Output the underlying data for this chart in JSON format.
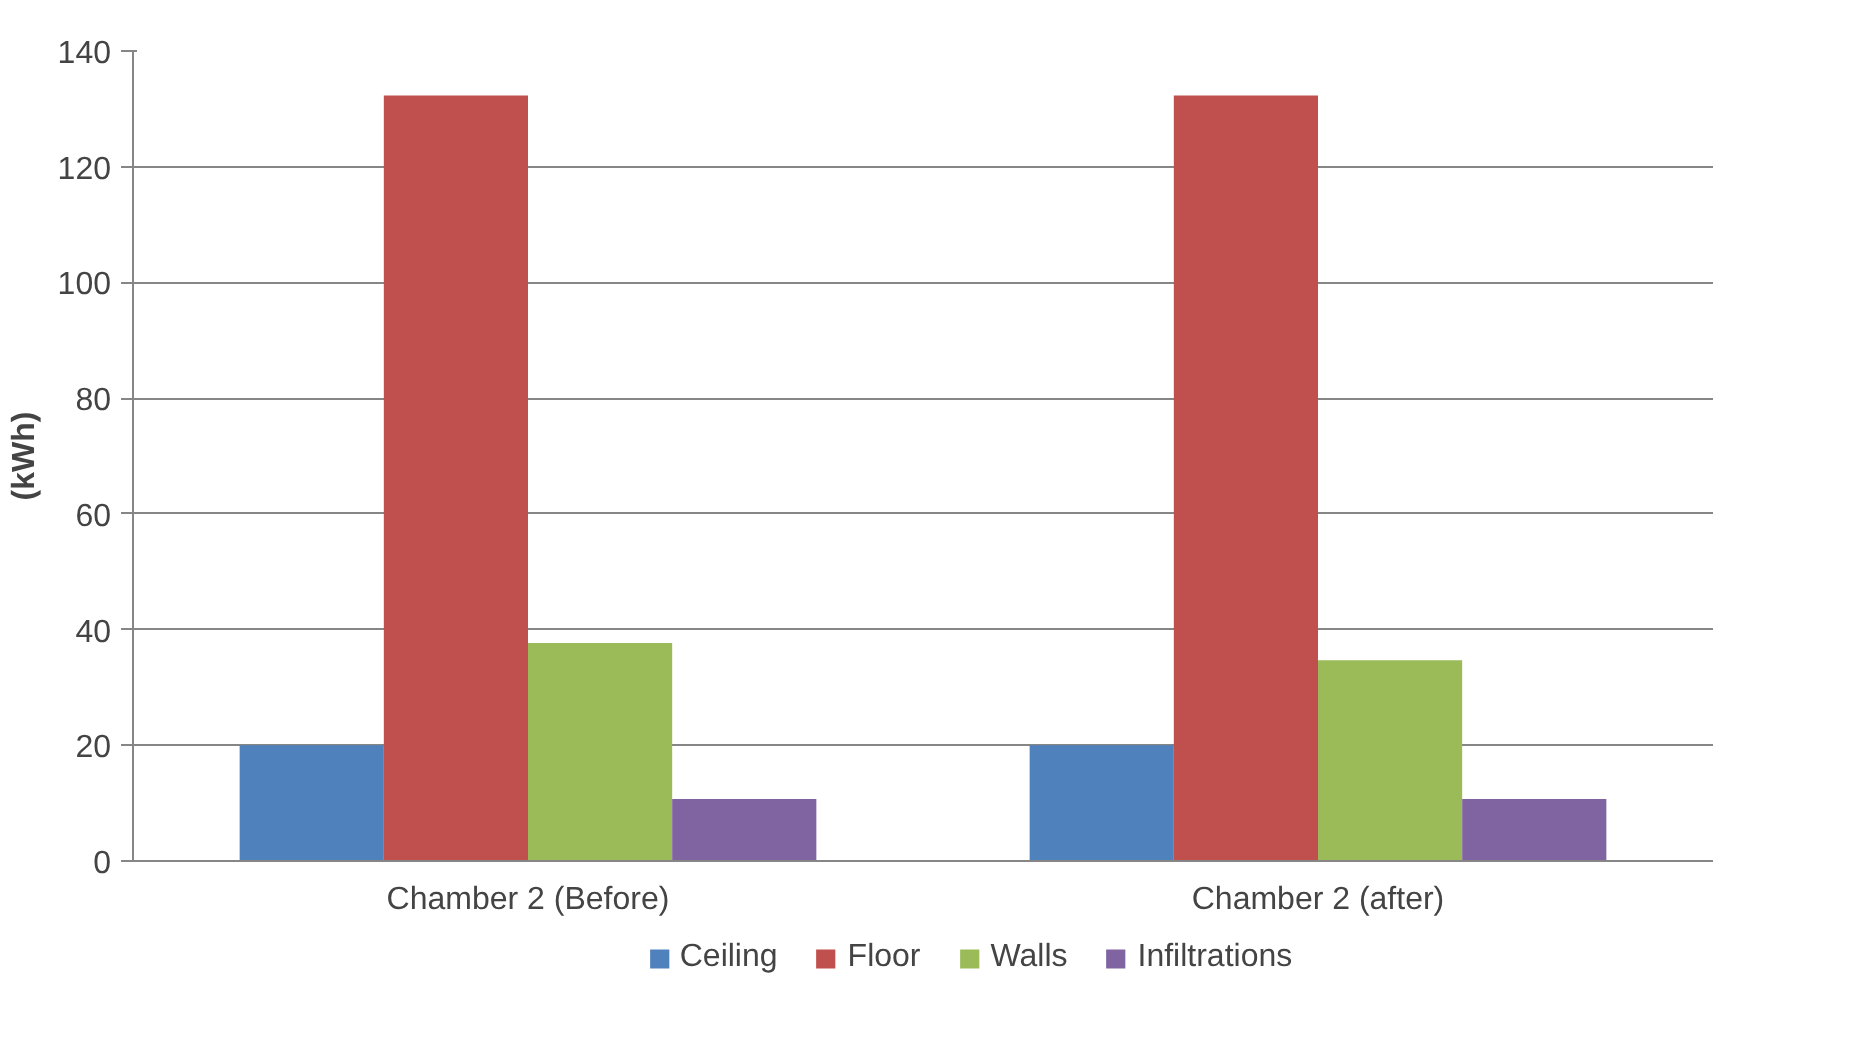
{
  "chart_data": {
    "type": "bar",
    "ylabel": "(kWh)",
    "categories": [
      "Chamber 2 (Before)",
      "Chamber 2 (after)"
    ],
    "series": [
      {
        "name": "Ceiling",
        "color": "#4f81bd",
        "values": [
          20,
          20
        ]
      },
      {
        "name": "Floor",
        "color": "#c0504d",
        "values": [
          132.3,
          132.3
        ]
      },
      {
        "name": "Walls",
        "color": "#9bbb59",
        "values": [
          37.7,
          34.7
        ]
      },
      {
        "name": "Infiltrations",
        "color": "#8064a2",
        "values": [
          10.7,
          10.7
        ]
      }
    ],
    "ylim": [
      0,
      140
    ],
    "yticks": [
      0,
      20,
      40,
      60,
      80,
      100,
      120,
      140
    ],
    "grid": "y",
    "legend": "bottom"
  }
}
